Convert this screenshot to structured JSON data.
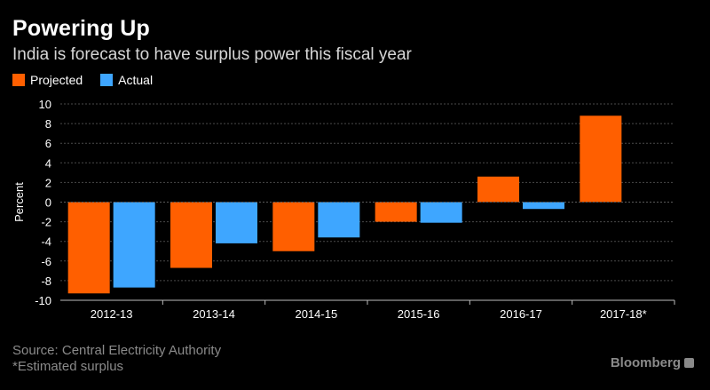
{
  "header": {
    "title": "Powering Up",
    "subtitle": "India is forecast to have surplus power this fiscal year"
  },
  "legend": {
    "items": [
      {
        "label": "Projected",
        "color": "#ff5f00"
      },
      {
        "label": "Actual",
        "color": "#3ea6ff"
      }
    ]
  },
  "footer": {
    "source": "Source: Central Electricity Authority",
    "note": "*Estimated surplus",
    "brand": "Bloomberg",
    "brand_icon": "bloomberg-logo-icon"
  },
  "chart_data": {
    "type": "bar",
    "title": "Powering Up",
    "subtitle": "India is forecast to have surplus power this fiscal year",
    "ylabel": "Percent",
    "xlabel": "",
    "ylim": [
      -10,
      10
    ],
    "yticks": [
      10,
      8,
      6,
      4,
      2,
      0,
      -2,
      -4,
      -6,
      -8,
      -10
    ],
    "grid": true,
    "legend_position": "top-left",
    "categories": [
      "2012-13",
      "2013-14",
      "2014-15",
      "2015-16",
      "2016-17",
      "2017-18*"
    ],
    "series": [
      {
        "name": "Projected",
        "color": "#ff5f00",
        "values": [
          -9.3,
          -6.7,
          -5.0,
          -2.0,
          2.6,
          8.8
        ]
      },
      {
        "name": "Actual",
        "color": "#3ea6ff",
        "values": [
          -8.7,
          -4.2,
          -3.6,
          -2.1,
          -0.7,
          null
        ]
      }
    ]
  }
}
